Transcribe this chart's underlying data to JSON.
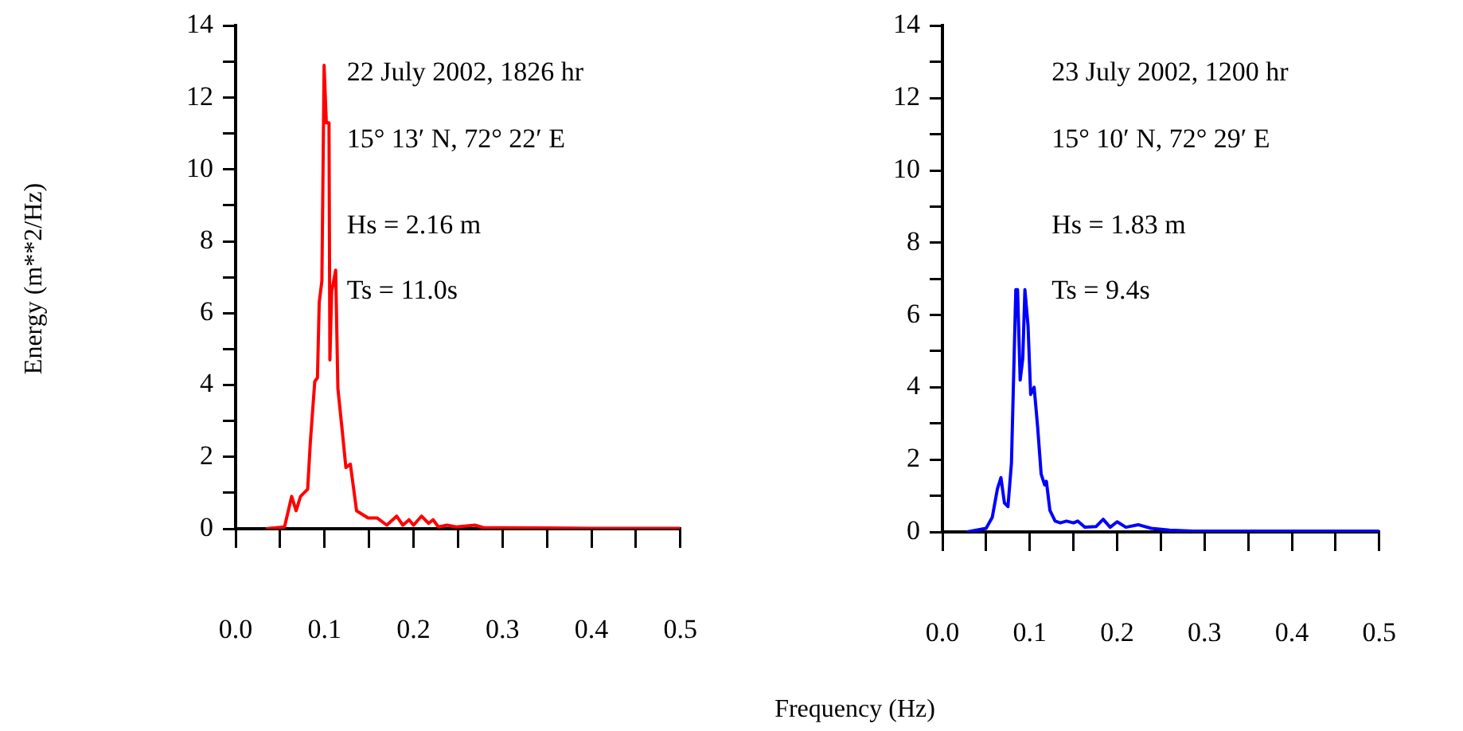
{
  "chart_data": [
    {
      "type": "line",
      "xlabel": "Frequency (Hz)",
      "ylabel": "Energy (m**2/Hz)",
      "xlim": [
        0,
        0.5
      ],
      "ylim": [
        0,
        14
      ],
      "xticks": [
        {
          "value": 0,
          "label": "0.0"
        },
        {
          "value": 0.05,
          "label": null
        },
        {
          "value": 0.1,
          "label": "0.1"
        },
        {
          "value": 0.15,
          "label": null
        },
        {
          "value": 0.2,
          "label": "0.2"
        },
        {
          "value": 0.25,
          "label": null
        },
        {
          "value": 0.3,
          "label": "0.3"
        },
        {
          "value": 0.35,
          "label": null
        },
        {
          "value": 0.4,
          "label": "0.4"
        },
        {
          "value": 0.45,
          "label": null
        },
        {
          "value": 0.5,
          "label": "0.5"
        }
      ],
      "yticks": [
        0,
        {
          "value": 1,
          "label": null
        },
        2,
        {
          "value": 3,
          "label": null
        },
        4,
        {
          "value": 5,
          "label": null
        },
        6,
        {
          "value": 7,
          "label": null
        },
        8,
        {
          "value": 9,
          "label": null
        },
        10,
        {
          "value": 11,
          "label": null
        },
        12,
        {
          "value": 13,
          "label": null
        },
        14
      ],
      "annotations": [
        "22 July 2002, 1826 hr",
        "15° 13′ N, 72° 22′ E",
        "Hs = 2.16 m",
        "Ts = 11.0s"
      ],
      "grid": false,
      "legend": false,
      "marker": "none",
      "line_style": "solid",
      "series": [
        {
          "color": "#ff0000",
          "x": [
            0.034,
            0.055,
            0.063,
            0.068,
            0.073,
            0.081,
            0.084,
            0.089,
            0.092,
            0.094,
            0.097,
            0.0995,
            0.102,
            0.105,
            0.106,
            0.108,
            0.1125,
            0.115,
            0.12,
            0.124,
            0.129,
            0.136,
            0.149,
            0.159,
            0.17,
            0.181,
            0.188,
            0.195,
            0.2,
            0.209,
            0.217,
            0.222,
            0.228,
            0.2375,
            0.248,
            0.269,
            0.279,
            0.3,
            0.35,
            0.4,
            0.45,
            0.5
          ],
          "values": [
            0,
            0.05,
            0.9,
            0.5,
            0.9,
            1.1,
            2.4,
            4.1,
            4.2,
            6.3,
            6.9,
            12.9,
            11.3,
            11.3,
            4.7,
            6.6,
            7.2,
            3.9,
            2.7,
            1.7,
            1.8,
            0.5,
            0.3,
            0.3,
            0.1,
            0.35,
            0.1,
            0.25,
            0.1,
            0.35,
            0.15,
            0.25,
            0.05,
            0.1,
            0.05,
            0.1,
            0.03,
            0.03,
            0.02,
            0.01,
            0.01,
            0.01
          ]
        }
      ]
    },
    {
      "type": "line",
      "xlim": [
        0,
        0.5
      ],
      "ylim": [
        0,
        14
      ],
      "xticks": [
        {
          "value": 0,
          "label": "0.0"
        },
        {
          "value": 0.05,
          "label": null
        },
        {
          "value": 0.1,
          "label": "0.1"
        },
        {
          "value": 0.15,
          "label": null
        },
        {
          "value": 0.2,
          "label": "0.2"
        },
        {
          "value": 0.25,
          "label": null
        },
        {
          "value": 0.3,
          "label": "0.3"
        },
        {
          "value": 0.35,
          "label": null
        },
        {
          "value": 0.4,
          "label": "0.4"
        },
        {
          "value": 0.45,
          "label": null
        },
        {
          "value": 0.5,
          "label": "0.5"
        }
      ],
      "yticks": [
        0,
        {
          "value": 1,
          "label": null
        },
        2,
        {
          "value": 3,
          "label": null
        },
        4,
        {
          "value": 5,
          "label": null
        },
        6,
        {
          "value": 7,
          "label": null
        },
        8,
        {
          "value": 9,
          "label": null
        },
        10,
        {
          "value": 11,
          "label": null
        },
        12,
        {
          "value": 13,
          "label": null
        },
        14
      ],
      "annotations": [
        "23 July 2002, 1200 hr",
        "15° 10′ N, 72° 29′ E",
        "Hs = 1.83 m",
        "Ts = 9.4s"
      ],
      "grid": false,
      "legend": false,
      "marker": "none",
      "line_style": "solid",
      "series": [
        {
          "color": "#0000ff",
          "x": [
            0.028,
            0.05,
            0.057,
            0.063,
            0.067,
            0.071,
            0.075,
            0.079,
            0.084,
            0.086,
            0.089,
            0.092,
            0.0944,
            0.098,
            0.101,
            0.105,
            0.109,
            0.113,
            0.117,
            0.119,
            0.123,
            0.129,
            0.135,
            0.142,
            0.15,
            0.155,
            0.163,
            0.176,
            0.184,
            0.192,
            0.2,
            0.21,
            0.224,
            0.239,
            0.26,
            0.287,
            0.35,
            0.4,
            0.45,
            0.5
          ],
          "values": [
            0,
            0.1,
            0.4,
            1.2,
            1.5,
            0.8,
            0.7,
            1.9,
            6.7,
            6.7,
            4.2,
            4.8,
            6.7,
            5.7,
            3.8,
            4.0,
            2.9,
            1.6,
            1.3,
            1.4,
            0.6,
            0.3,
            0.25,
            0.3,
            0.25,
            0.3,
            0.13,
            0.15,
            0.35,
            0.13,
            0.28,
            0.13,
            0.2,
            0.1,
            0.05,
            0.02,
            0.02,
            0.02,
            0.02,
            0.02
          ]
        }
      ]
    }
  ]
}
